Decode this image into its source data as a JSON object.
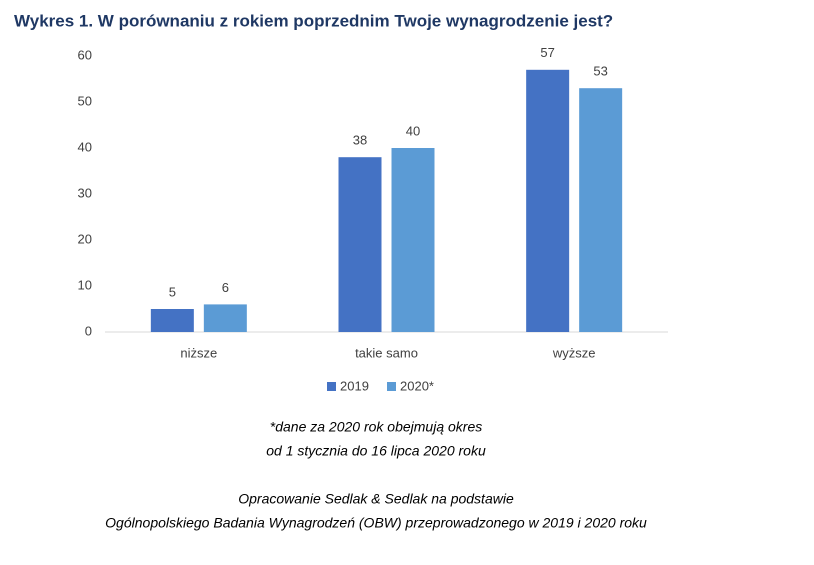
{
  "chart_data": {
    "type": "bar",
    "title": "Wykres 1. W porównaniu z rokiem poprzednim Twoje wynagrodzenie jest?",
    "categories": [
      "niższe",
      "takie samo",
      "wyższe"
    ],
    "series": [
      {
        "name": "2019",
        "color": "#4472c4",
        "values": [
          5,
          38,
          57
        ]
      },
      {
        "name": "2020*",
        "color": "#5b9bd5",
        "values": [
          6,
          40,
          53
        ]
      }
    ],
    "ylim": [
      0,
      60
    ],
    "yticks": [
      0,
      10,
      20,
      30,
      40,
      50,
      60
    ],
    "grid": false,
    "legend": "bottom",
    "notes": [
      "*dane za 2020 rok obejmują okres",
      "od 1 stycznia do 16 lipca 2020 roku"
    ],
    "source": [
      "Opracowanie Sedlak & Sedlak na podstawie",
      "Ogólnopolskiego Badania Wynagrodzeń (OBW) przeprowadzonego w 2019 i 2020 roku"
    ]
  }
}
